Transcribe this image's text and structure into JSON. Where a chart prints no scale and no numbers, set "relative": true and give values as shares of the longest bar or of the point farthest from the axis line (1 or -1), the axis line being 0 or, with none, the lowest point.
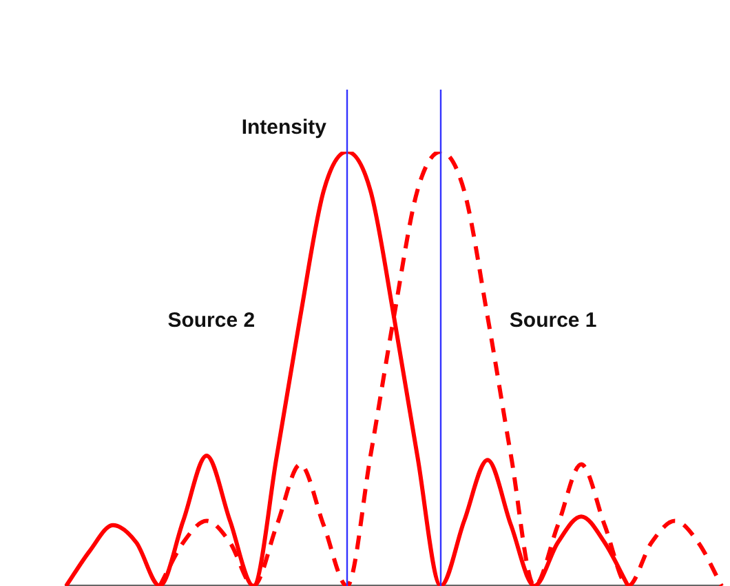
{
  "chart_data": {
    "type": "line",
    "relative": true,
    "tick_labels": false,
    "grid": false,
    "legend": false,
    "marker": "none",
    "categories": [
      null,
      null,
      null,
      null,
      null,
      null,
      null,
      null,
      null,
      null,
      null,
      null,
      null,
      null,
      null,
      null,
      null,
      null,
      null,
      null,
      null,
      null,
      null,
      null,
      null,
      null,
      null,
      null,
      null
    ],
    "series": [
      {
        "name": "Source 2",
        "color": "#ff0000",
        "line_style": "solid",
        "values": [
          0,
          0.08,
          0.14,
          0.1,
          0,
          0.15,
          0.3,
          0.15,
          0,
          0.3,
          0.62,
          0.91,
          1,
          0.91,
          0.62,
          0.3,
          0,
          0.15,
          0.29,
          0.14,
          0,
          0.1,
          0.16,
          0.1,
          0,
          null,
          null,
          null,
          null
        ]
      },
      {
        "name": "Source 1",
        "color": "#ff0000",
        "line_style": "dashed",
        "values": [
          null,
          null,
          null,
          null,
          0,
          0.1,
          0.15,
          0.1,
          0,
          0.14,
          0.28,
          0.14,
          0,
          0.3,
          0.62,
          0.91,
          1,
          0.91,
          0.62,
          0.3,
          0,
          0.14,
          0.28,
          0.14,
          0,
          0.1,
          0.15,
          0.1,
          0
        ]
      }
    ],
    "annotations": [
      "Intensity"
    ]
  }
}
